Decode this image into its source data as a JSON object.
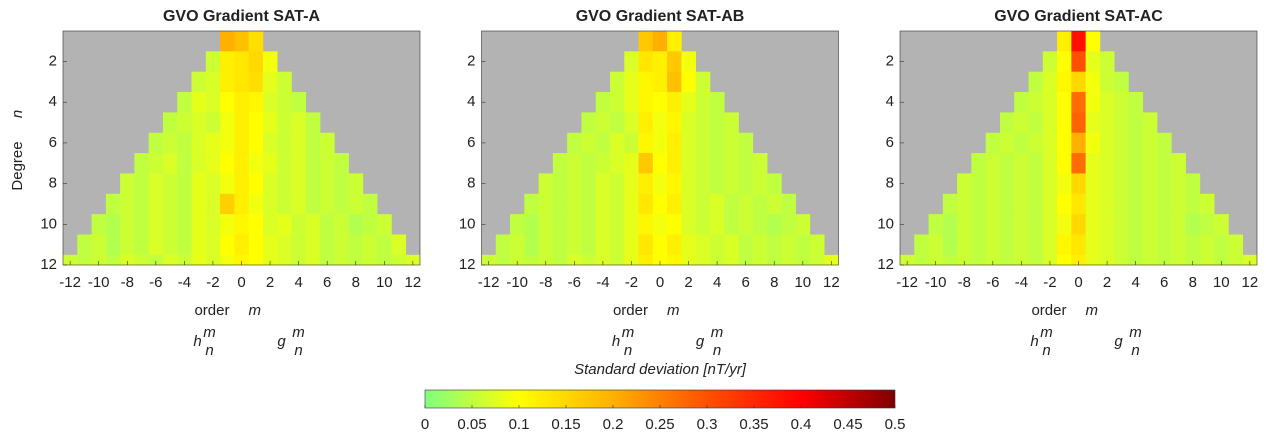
{
  "chart_data": [
    {
      "type": "heatmap",
      "title": "GVO Gradient SAT-A",
      "xlabel": "order",
      "xlabel_symbol": "m",
      "ylabel": "Degree",
      "ylabel_symbol": "n",
      "coef_labels": [
        {
          "base": "h",
          "sup": "m",
          "sub": "n"
        },
        {
          "base": "g",
          "sup": "m",
          "sub": "n"
        }
      ],
      "x": [
        -12,
        -11,
        -10,
        -9,
        -8,
        -7,
        -6,
        -5,
        -4,
        -3,
        -2,
        -1,
        0,
        1,
        2,
        3,
        4,
        5,
        6,
        7,
        8,
        9,
        10,
        11,
        12
      ],
      "y": [
        1,
        2,
        3,
        4,
        5,
        6,
        7,
        8,
        9,
        10,
        11,
        12
      ],
      "xlim": [
        -12.5,
        12.5
      ],
      "ylim": [
        0.5,
        12
      ],
      "y_reversed": true,
      "xticks": [
        -12,
        -10,
        -8,
        -6,
        -4,
        -2,
        0,
        2,
        4,
        6,
        8,
        10,
        12
      ],
      "yticks": [
        2,
        4,
        6,
        8,
        10,
        12
      ],
      "values": [
        [
          null,
          null,
          null,
          null,
          null,
          null,
          null,
          null,
          null,
          null,
          null,
          0.2,
          0.18,
          0.14,
          null,
          null,
          null,
          null,
          null,
          null,
          null,
          null,
          null,
          null,
          null
        ],
        [
          null,
          null,
          null,
          null,
          null,
          null,
          null,
          null,
          null,
          null,
          0.06,
          0.12,
          0.13,
          0.15,
          0.09,
          null,
          null,
          null,
          null,
          null,
          null,
          null,
          null,
          null,
          null
        ],
        [
          null,
          null,
          null,
          null,
          null,
          null,
          null,
          null,
          null,
          0.06,
          0.07,
          0.12,
          0.13,
          0.14,
          0.08,
          0.06,
          null,
          null,
          null,
          null,
          null,
          null,
          null,
          null,
          null
        ],
        [
          null,
          null,
          null,
          null,
          null,
          null,
          null,
          null,
          0.05,
          0.08,
          0.07,
          0.1,
          0.12,
          0.11,
          0.07,
          0.06,
          0.05,
          null,
          null,
          null,
          null,
          null,
          null,
          null,
          null
        ],
        [
          null,
          null,
          null,
          null,
          null,
          null,
          null,
          0.05,
          0.06,
          0.07,
          0.06,
          0.09,
          0.12,
          0.1,
          0.08,
          0.06,
          0.07,
          0.05,
          null,
          null,
          null,
          null,
          null,
          null,
          null
        ],
        [
          null,
          null,
          null,
          null,
          null,
          null,
          0.05,
          0.06,
          0.05,
          0.07,
          0.08,
          0.09,
          0.12,
          0.1,
          0.07,
          0.06,
          0.07,
          0.05,
          0.06,
          null,
          null,
          null,
          null,
          null,
          null
        ],
        [
          null,
          null,
          null,
          null,
          null,
          0.05,
          0.06,
          0.07,
          0.05,
          0.07,
          0.08,
          0.1,
          0.12,
          0.09,
          0.08,
          0.06,
          0.07,
          0.05,
          0.06,
          0.05,
          null,
          null,
          null,
          null,
          null
        ],
        [
          null,
          null,
          null,
          null,
          0.06,
          0.05,
          0.07,
          0.06,
          0.05,
          0.08,
          0.07,
          0.09,
          0.12,
          0.1,
          0.07,
          0.06,
          0.07,
          0.05,
          0.06,
          0.05,
          0.06,
          null,
          null,
          null,
          null
        ],
        [
          null,
          null,
          null,
          0.05,
          0.06,
          0.05,
          0.07,
          0.06,
          0.05,
          0.08,
          0.07,
          0.16,
          0.12,
          0.09,
          0.07,
          0.06,
          0.07,
          0.05,
          0.06,
          0.05,
          0.06,
          0.05,
          null,
          null,
          null
        ],
        [
          null,
          null,
          0.05,
          0.04,
          0.06,
          0.05,
          0.07,
          0.06,
          0.05,
          0.08,
          0.07,
          0.09,
          0.11,
          0.1,
          0.07,
          0.08,
          0.06,
          0.07,
          0.05,
          0.06,
          0.04,
          0.05,
          0.06,
          null,
          null
        ],
        [
          null,
          0.05,
          0.06,
          0.04,
          0.06,
          0.05,
          0.07,
          0.06,
          0.05,
          0.08,
          0.07,
          0.1,
          0.12,
          0.1,
          0.08,
          0.07,
          0.06,
          0.07,
          0.05,
          0.06,
          0.05,
          0.06,
          0.05,
          0.07,
          null
        ],
        [
          0.06,
          0.05,
          0.06,
          0.05,
          0.07,
          0.06,
          0.05,
          0.07,
          0.06,
          0.08,
          0.07,
          0.09,
          0.11,
          0.1,
          0.08,
          0.07,
          0.06,
          0.07,
          0.05,
          0.06,
          0.05,
          0.06,
          0.05,
          0.06,
          0.07
        ]
      ]
    },
    {
      "type": "heatmap",
      "title": "GVO Gradient SAT-AB",
      "xlabel": "order",
      "xlabel_symbol": "m",
      "coef_labels": [
        {
          "base": "h",
          "sup": "m",
          "sub": "n"
        },
        {
          "base": "g",
          "sup": "m",
          "sub": "n"
        }
      ],
      "x": [
        -12,
        -11,
        -10,
        -9,
        -8,
        -7,
        -6,
        -5,
        -4,
        -3,
        -2,
        -1,
        0,
        1,
        2,
        3,
        4,
        5,
        6,
        7,
        8,
        9,
        10,
        11,
        12
      ],
      "y": [
        1,
        2,
        3,
        4,
        5,
        6,
        7,
        8,
        9,
        10,
        11,
        12
      ],
      "xlim": [
        -12.5,
        12.5
      ],
      "ylim": [
        0.5,
        12
      ],
      "y_reversed": true,
      "xticks": [
        -12,
        -10,
        -8,
        -6,
        -4,
        -2,
        0,
        2,
        4,
        6,
        8,
        10,
        12
      ],
      "yticks": [
        2,
        4,
        6,
        8,
        10,
        12
      ],
      "values": [
        [
          null,
          null,
          null,
          null,
          null,
          null,
          null,
          null,
          null,
          null,
          null,
          0.17,
          0.2,
          0.12,
          null,
          null,
          null,
          null,
          null,
          null,
          null,
          null,
          null,
          null,
          null
        ],
        [
          null,
          null,
          null,
          null,
          null,
          null,
          null,
          null,
          null,
          null,
          0.07,
          0.13,
          0.12,
          0.17,
          0.09,
          null,
          null,
          null,
          null,
          null,
          null,
          null,
          null,
          null,
          null
        ],
        [
          null,
          null,
          null,
          null,
          null,
          null,
          null,
          null,
          null,
          0.06,
          0.08,
          0.11,
          0.12,
          0.18,
          0.1,
          0.06,
          null,
          null,
          null,
          null,
          null,
          null,
          null,
          null,
          null
        ],
        [
          null,
          null,
          null,
          null,
          null,
          null,
          null,
          null,
          0.05,
          0.06,
          0.08,
          0.11,
          0.1,
          0.12,
          0.08,
          0.06,
          0.05,
          null,
          null,
          null,
          null,
          null,
          null,
          null,
          null
        ],
        [
          null,
          null,
          null,
          null,
          null,
          null,
          null,
          0.05,
          0.06,
          0.05,
          0.07,
          0.12,
          0.09,
          0.11,
          0.07,
          0.06,
          0.05,
          0.06,
          null,
          null,
          null,
          null,
          null,
          null,
          null
        ],
        [
          null,
          null,
          null,
          null,
          null,
          null,
          0.05,
          0.06,
          0.05,
          0.07,
          0.06,
          0.11,
          0.09,
          0.12,
          0.07,
          0.06,
          0.05,
          0.06,
          0.05,
          null,
          null,
          null,
          null,
          null,
          null
        ],
        [
          null,
          null,
          null,
          null,
          null,
          0.05,
          0.06,
          0.05,
          0.06,
          0.07,
          0.08,
          0.17,
          0.1,
          0.12,
          0.07,
          0.06,
          0.05,
          0.06,
          0.05,
          0.06,
          null,
          null,
          null,
          null,
          null
        ],
        [
          null,
          null,
          null,
          null,
          0.06,
          0.05,
          0.06,
          0.05,
          0.07,
          0.06,
          0.08,
          0.12,
          0.09,
          0.11,
          0.07,
          0.06,
          0.05,
          0.06,
          0.05,
          0.06,
          0.05,
          null,
          null,
          null,
          null
        ],
        [
          null,
          null,
          null,
          0.05,
          0.06,
          0.05,
          0.06,
          0.05,
          0.07,
          0.06,
          0.08,
          0.13,
          0.1,
          0.12,
          0.07,
          0.06,
          0.07,
          0.05,
          0.06,
          0.05,
          0.06,
          0.05,
          null,
          null,
          null
        ],
        [
          null,
          null,
          0.05,
          0.04,
          0.06,
          0.05,
          0.06,
          0.05,
          0.07,
          0.06,
          0.08,
          0.11,
          0.09,
          0.1,
          0.07,
          0.06,
          0.07,
          0.05,
          0.06,
          0.05,
          0.04,
          0.05,
          0.06,
          null,
          null
        ],
        [
          null,
          0.05,
          0.06,
          0.04,
          0.06,
          0.05,
          0.06,
          0.05,
          0.07,
          0.06,
          0.08,
          0.13,
          0.1,
          0.12,
          0.08,
          0.07,
          0.06,
          0.07,
          0.05,
          0.06,
          0.05,
          0.06,
          0.05,
          0.06,
          null
        ],
        [
          0.06,
          0.05,
          0.06,
          0.05,
          0.06,
          0.05,
          0.07,
          0.06,
          0.07,
          0.06,
          0.08,
          0.12,
          0.1,
          0.11,
          0.08,
          0.07,
          0.06,
          0.07,
          0.05,
          0.06,
          0.05,
          0.06,
          0.05,
          0.06,
          0.08
        ]
      ]
    },
    {
      "type": "heatmap",
      "title": "GVO Gradient SAT-AC",
      "xlabel": "order",
      "xlabel_symbol": "m",
      "coef_labels": [
        {
          "base": "h",
          "sup": "m",
          "sub": "n"
        },
        {
          "base": "g",
          "sup": "m",
          "sub": "n"
        }
      ],
      "x": [
        -12,
        -11,
        -10,
        -9,
        -8,
        -7,
        -6,
        -5,
        -4,
        -3,
        -2,
        -1,
        0,
        1,
        2,
        3,
        4,
        5,
        6,
        7,
        8,
        9,
        10,
        11,
        12
      ],
      "y": [
        1,
        2,
        3,
        4,
        5,
        6,
        7,
        8,
        9,
        10,
        11,
        12
      ],
      "xlim": [
        -12.5,
        12.5
      ],
      "ylim": [
        0.5,
        12
      ],
      "y_reversed": true,
      "xticks": [
        -12,
        -10,
        -8,
        -6,
        -4,
        -2,
        0,
        2,
        4,
        6,
        8,
        10,
        12
      ],
      "yticks": [
        2,
        4,
        6,
        8,
        10,
        12
      ],
      "values": [
        [
          null,
          null,
          null,
          null,
          null,
          null,
          null,
          null,
          null,
          null,
          null,
          0.12,
          0.38,
          0.1,
          null,
          null,
          null,
          null,
          null,
          null,
          null,
          null,
          null,
          null,
          null
        ],
        [
          null,
          null,
          null,
          null,
          null,
          null,
          null,
          null,
          null,
          null,
          0.06,
          0.1,
          0.3,
          0.08,
          0.06,
          null,
          null,
          null,
          null,
          null,
          null,
          null,
          null,
          null,
          null
        ],
        [
          null,
          null,
          null,
          null,
          null,
          null,
          null,
          null,
          null,
          0.05,
          0.07,
          0.11,
          0.15,
          0.09,
          0.06,
          0.05,
          null,
          null,
          null,
          null,
          null,
          null,
          null,
          null,
          null
        ],
        [
          null,
          null,
          null,
          null,
          null,
          null,
          null,
          null,
          0.05,
          0.06,
          0.07,
          0.1,
          0.27,
          0.09,
          0.07,
          0.06,
          0.05,
          null,
          null,
          null,
          null,
          null,
          null,
          null,
          null
        ],
        [
          null,
          null,
          null,
          null,
          null,
          null,
          null,
          0.05,
          0.06,
          0.05,
          0.07,
          0.1,
          0.28,
          0.08,
          0.07,
          0.06,
          0.05,
          0.06,
          null,
          null,
          null,
          null,
          null,
          null,
          null
        ],
        [
          null,
          null,
          null,
          null,
          null,
          null,
          0.05,
          0.06,
          0.05,
          0.06,
          0.07,
          0.1,
          0.2,
          0.09,
          0.07,
          0.06,
          0.05,
          0.06,
          0.05,
          null,
          null,
          null,
          null,
          null,
          null
        ],
        [
          null,
          null,
          null,
          null,
          null,
          0.05,
          0.06,
          0.05,
          0.06,
          0.05,
          0.07,
          0.1,
          0.27,
          0.08,
          0.07,
          0.06,
          0.05,
          0.06,
          0.05,
          0.06,
          null,
          null,
          null,
          null,
          null
        ],
        [
          null,
          null,
          null,
          null,
          0.06,
          0.05,
          0.06,
          0.05,
          0.06,
          0.05,
          0.07,
          0.09,
          0.15,
          0.08,
          0.07,
          0.06,
          0.05,
          0.06,
          0.05,
          0.06,
          0.05,
          null,
          null,
          null,
          null
        ],
        [
          null,
          null,
          null,
          0.05,
          0.06,
          0.05,
          0.06,
          0.05,
          0.06,
          0.05,
          0.07,
          0.1,
          0.13,
          0.08,
          0.07,
          0.06,
          0.05,
          0.06,
          0.05,
          0.06,
          0.05,
          0.06,
          null,
          null,
          null
        ],
        [
          null,
          null,
          0.05,
          0.04,
          0.06,
          0.05,
          0.06,
          0.05,
          0.06,
          0.05,
          0.07,
          0.09,
          0.15,
          0.08,
          0.07,
          0.06,
          0.05,
          0.06,
          0.05,
          0.06,
          0.04,
          0.05,
          0.06,
          null,
          null
        ],
        [
          null,
          0.05,
          0.06,
          0.04,
          0.06,
          0.05,
          0.06,
          0.05,
          0.06,
          0.05,
          0.07,
          0.11,
          0.13,
          0.08,
          0.07,
          0.06,
          0.05,
          0.06,
          0.05,
          0.06,
          0.05,
          0.06,
          0.05,
          0.06,
          null
        ],
        [
          0.06,
          0.05,
          0.06,
          0.05,
          0.06,
          0.05,
          0.06,
          0.05,
          0.06,
          0.05,
          0.07,
          0.1,
          0.12,
          0.08,
          0.07,
          0.06,
          0.05,
          0.06,
          0.05,
          0.06,
          0.05,
          0.06,
          0.05,
          0.06,
          0.07
        ]
      ]
    }
  ],
  "colorbar": {
    "label": "Standard deviation [nT/yr]",
    "clim": [
      0,
      0.5
    ],
    "ticks": [
      0,
      0.05,
      0.1,
      0.15,
      0.2,
      0.25,
      0.3,
      0.35,
      0.4,
      0.45,
      0.5
    ],
    "colors": [
      "#80ff80",
      "#ffff00",
      "#ffb000",
      "#ff5000",
      "#ff0000",
      "#800000"
    ],
    "missing_color": "#b3b3b3"
  }
}
